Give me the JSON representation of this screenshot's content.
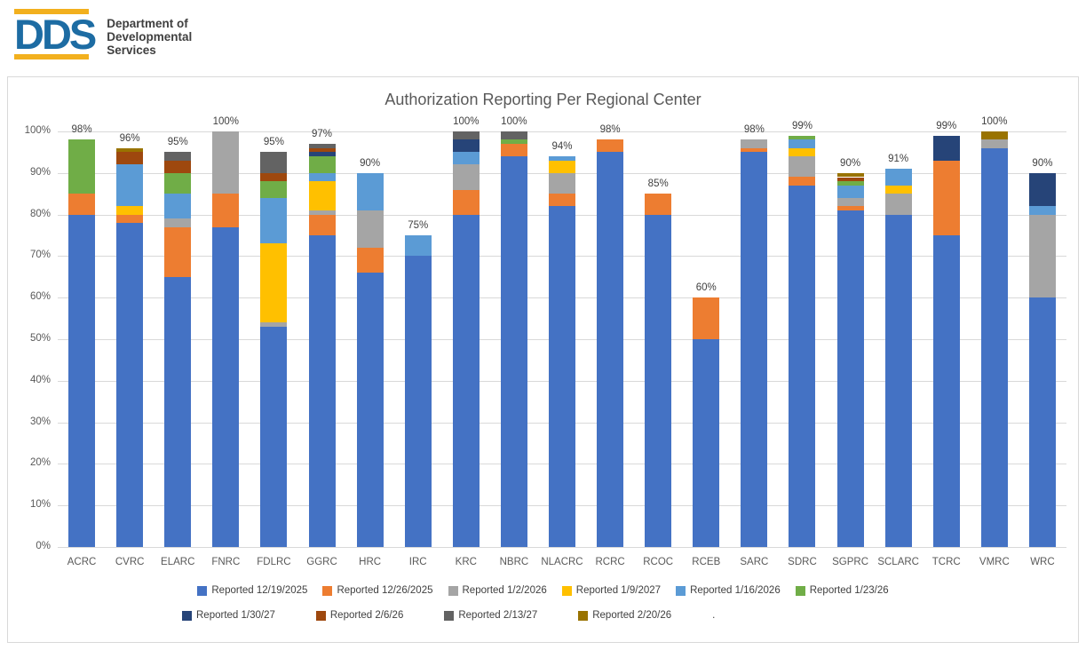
{
  "logo": {
    "acronym": "DDS",
    "department_lines": [
      "Department of",
      "Developmental",
      "Services"
    ],
    "brand_blue": "#1D6CA3",
    "brand_gold": "#F2B01E"
  },
  "chart_data": {
    "type": "bar",
    "stacked": true,
    "title": "Authorization Reporting Per Regional Center",
    "xlabel": "",
    "ylabel": "",
    "ylim": [
      0,
      100
    ],
    "grid": true,
    "legend_position": "bottom",
    "y_ticks": [
      "0%",
      "10%",
      "20%",
      "30%",
      "40%",
      "50%",
      "60%",
      "70%",
      "80%",
      "90%",
      "100%"
    ],
    "categories": [
      "ACRC",
      "CVRC",
      "ELARC",
      "FNRC",
      "FDLRC",
      "GGRC",
      "HRC",
      "IRC",
      "KRC",
      "NBRC",
      "NLACRC",
      "RCRC",
      "RCOC",
      "RCEB",
      "SARC",
      "SDRC",
      "SGPRC",
      "SCLARC",
      "TCRC",
      "VMRC",
      "WRC"
    ],
    "totals": [
      "98%",
      "96%",
      "95%",
      "100%",
      "95%",
      "97%",
      "90%",
      "75%",
      "100%",
      "100%",
      "94%",
      "98%",
      "85%",
      "60%",
      "98%",
      "99%",
      "90%",
      "91%",
      "99%",
      "100%",
      "90%"
    ],
    "series": [
      {
        "name": "Reported 12/19/2025",
        "color": "#4472C4",
        "values": [
          80,
          78,
          65,
          77,
          53,
          75,
          66,
          70,
          80,
          94,
          82,
          95,
          80,
          50,
          95,
          87,
          81,
          80,
          75,
          96,
          60
        ]
      },
      {
        "name": "Reported 12/26/2025",
        "color": "#ED7D31",
        "values": [
          5,
          2,
          12,
          8,
          0,
          5,
          6,
          0,
          6,
          3,
          3,
          3,
          5,
          10,
          1,
          2,
          1,
          0,
          18,
          0,
          0
        ]
      },
      {
        "name": "Reported 1/2/2026",
        "color": "#A5A5A5",
        "values": [
          0,
          0,
          2,
          15,
          1,
          1,
          9,
          0,
          6,
          0,
          5,
          0,
          0,
          0,
          2,
          5,
          2,
          5,
          0,
          2,
          20
        ]
      },
      {
        "name": "Reported 1/9/2027",
        "color": "#FFC000",
        "values": [
          0,
          2,
          0,
          0,
          19,
          7,
          0,
          0,
          0,
          0,
          3,
          0,
          0,
          0,
          0,
          2,
          0,
          2,
          0,
          0,
          0
        ]
      },
      {
        "name": "Reported 1/16/2026",
        "color": "#5B9BD5",
        "values": [
          0,
          10,
          6,
          0,
          11,
          2,
          9,
          5,
          3,
          0,
          1,
          0,
          0,
          0,
          0,
          2,
          3,
          4,
          0,
          0,
          2
        ]
      },
      {
        "name": "Reported 1/23/26",
        "color": "#70AD47",
        "values": [
          13,
          0,
          5,
          0,
          4,
          4,
          0,
          0,
          0,
          1,
          0,
          0,
          0,
          0,
          0,
          1,
          1,
          0,
          0,
          0,
          0
        ]
      },
      {
        "name": "Reported 1/30/27",
        "color": "#264478",
        "values": [
          0,
          0,
          0,
          0,
          0,
          1,
          0,
          0,
          3,
          0,
          0,
          0,
          0,
          0,
          0,
          0,
          0,
          0,
          6,
          0,
          8
        ]
      },
      {
        "name": "Reported 2/6/26",
        "color": "#9E480E",
        "values": [
          0,
          3,
          3,
          0,
          2,
          1,
          0,
          0,
          0,
          0,
          0,
          0,
          0,
          0,
          0,
          0,
          1,
          0,
          0,
          0,
          0
        ]
      },
      {
        "name": "Reported 2/13/27",
        "color": "#636363",
        "values": [
          0,
          0,
          2,
          0,
          5,
          1,
          0,
          0,
          2,
          2,
          0,
          0,
          0,
          0,
          0,
          0,
          0,
          0,
          0,
          0,
          0
        ]
      },
      {
        "name": "Reported 2/20/26",
        "color": "#997300",
        "values": [
          0,
          1,
          0,
          0,
          0,
          0,
          0,
          0,
          0,
          0,
          0,
          0,
          0,
          0,
          0,
          0,
          1,
          0,
          0,
          2,
          0
        ]
      }
    ],
    "legend_rows": [
      [
        0,
        1,
        2,
        3,
        4,
        5
      ],
      [
        6,
        7,
        8,
        9
      ]
    ],
    "legend_trailing_text": "."
  }
}
